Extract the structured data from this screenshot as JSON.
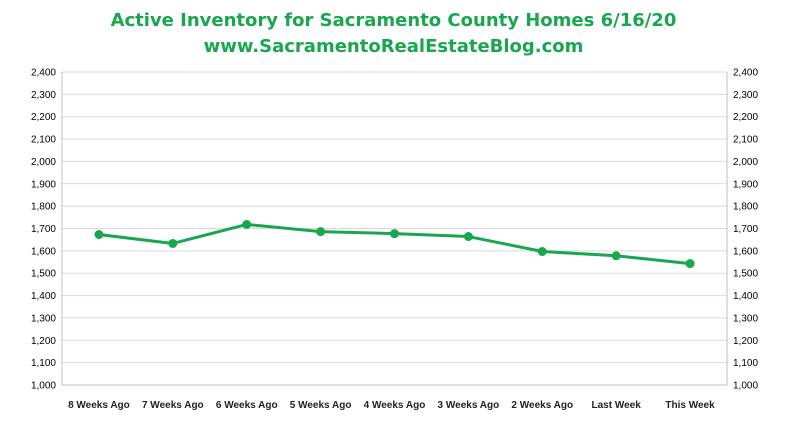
{
  "chart_data": {
    "type": "line",
    "title": "Active Inventory for Sacramento County Homes 6/16/20",
    "subtitle": "www.SacramentoRealEstateBlog.com",
    "categories": [
      "8 Weeks Ago",
      "7 Weeks Ago",
      "6 Weeks Ago",
      "5 Weeks Ago",
      "4 Weeks Ago",
      "3 Weeks Ago",
      "2 Weeks Ago",
      "Last Week",
      "This Week"
    ],
    "highlight_category": "This Week",
    "values": [
      1673,
      1633,
      1718,
      1686,
      1677,
      1664,
      1597,
      1578,
      1543
    ],
    "ylim": [
      1000,
      2400
    ],
    "ytick_step": 100,
    "y_ticks": [
      "1,000",
      "1,100",
      "1,200",
      "1,300",
      "1,400",
      "1,500",
      "1,600",
      "1,700",
      "1,800",
      "1,900",
      "2,000",
      "2,100",
      "2,200",
      "2,300",
      "2,400"
    ],
    "secondary_axis": true,
    "grid": true,
    "xlabel": "",
    "ylabel": "",
    "colors": {
      "line": "#1aa64f",
      "title": "#1aa64f",
      "highlight": "#1aa64f",
      "grid": "#d9d9d9",
      "axis": "#bfbfbf"
    }
  }
}
